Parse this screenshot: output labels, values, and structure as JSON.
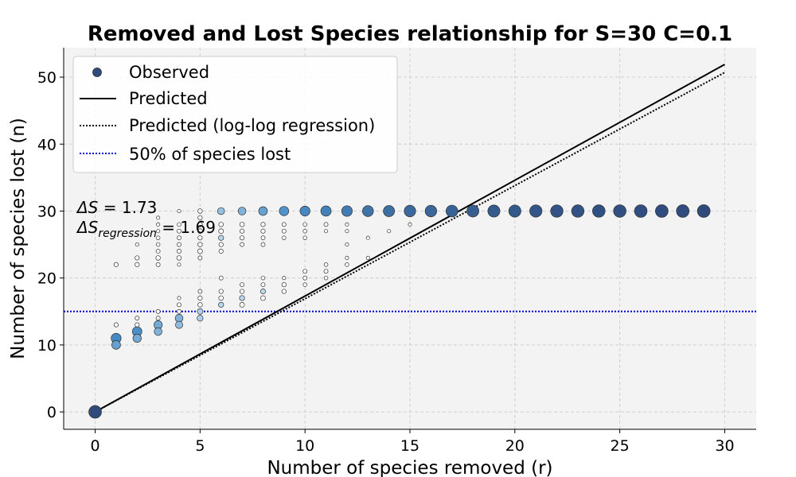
{
  "chart_data": {
    "type": "scatter",
    "title": "Removed and Lost Species relationship for S=30 C=0.1",
    "xlabel": "Number of species removed (r)",
    "ylabel": "Number of species lost (n)",
    "xlim": [
      -1.5,
      31.5
    ],
    "ylim": [
      -2.6,
      54.4
    ],
    "xticks": [
      0,
      5,
      10,
      15,
      20,
      25,
      30
    ],
    "yticks": [
      0,
      10,
      20,
      30,
      40,
      50
    ],
    "grid": true,
    "legend_position": "top-left",
    "legend": {
      "observed": "Observed",
      "predicted": "Predicted",
      "loglog": "Predicted (log-log regression)",
      "half": "50% of species lost"
    },
    "annotations": {
      "delta_s_symbol": "ΔS",
      "delta_s_value": " = 1.73",
      "delta_s_reg_symbol": "ΔS",
      "delta_s_reg_subscript": "regression",
      "delta_s_reg_value": " = 1.69"
    },
    "series": [
      {
        "name": "Predicted",
        "x": [
          0,
          30
        ],
        "y": [
          0,
          51.9
        ],
        "color": "#000000",
        "style": "solid"
      },
      {
        "name": "Predicted (log-log regression)",
        "x": [
          0,
          30
        ],
        "y": [
          0,
          50.7
        ],
        "color": "#000000",
        "style": "dotted"
      },
      {
        "name": "50% of species lost",
        "x": [
          -1.5,
          31.5
        ],
        "y": [
          15,
          15
        ],
        "color": "#0000cc",
        "style": "dotted"
      }
    ],
    "observed_points": [
      [
        0,
        0,
        1.0
      ],
      [
        1,
        22,
        0.05
      ],
      [
        1,
        13,
        0.05
      ],
      [
        1,
        11,
        0.55
      ],
      [
        1,
        10,
        0.4
      ],
      [
        2,
        25,
        0.02
      ],
      [
        2,
        23,
        0.05
      ],
      [
        2,
        22,
        0.05
      ],
      [
        2,
        14,
        0.04
      ],
      [
        2,
        13,
        0.05
      ],
      [
        2,
        12,
        0.5
      ],
      [
        2,
        11,
        0.35
      ],
      [
        3,
        29,
        0.02
      ],
      [
        3,
        28,
        0.02
      ],
      [
        3,
        27,
        0.02
      ],
      [
        3,
        26,
        0.03
      ],
      [
        3,
        25,
        0.03
      ],
      [
        3,
        24,
        0.04
      ],
      [
        3,
        23,
        0.06
      ],
      [
        3,
        22,
        0.04
      ],
      [
        3,
        15,
        0.04
      ],
      [
        3,
        14,
        0.04
      ],
      [
        3,
        13,
        0.35
      ],
      [
        3,
        12,
        0.3
      ],
      [
        4,
        30,
        0.02
      ],
      [
        4,
        28,
        0.03
      ],
      [
        4,
        27,
        0.04
      ],
      [
        4,
        26,
        0.04
      ],
      [
        4,
        25,
        0.04
      ],
      [
        4,
        24,
        0.05
      ],
      [
        4,
        23,
        0.06
      ],
      [
        4,
        22,
        0.02
      ],
      [
        4,
        17,
        0.02
      ],
      [
        4,
        16,
        0.04
      ],
      [
        4,
        15,
        0.04
      ],
      [
        4,
        14,
        0.3
      ],
      [
        4,
        13,
        0.25
      ],
      [
        5,
        30,
        0.06
      ],
      [
        5,
        29,
        0.05
      ],
      [
        5,
        28,
        0.06
      ],
      [
        5,
        27,
        0.07
      ],
      [
        5,
        26,
        0.05
      ],
      [
        5,
        25,
        0.06
      ],
      [
        5,
        24,
        0.07
      ],
      [
        5,
        23,
        0.04
      ],
      [
        5,
        18,
        0.04
      ],
      [
        5,
        17,
        0.05
      ],
      [
        5,
        16,
        0.06
      ],
      [
        5,
        15,
        0.12
      ],
      [
        5,
        14,
        0.14
      ],
      [
        6,
        30,
        0.22
      ],
      [
        6,
        28,
        0.06
      ],
      [
        6,
        27,
        0.07
      ],
      [
        6,
        26,
        0.09
      ],
      [
        6,
        25,
        0.05
      ],
      [
        6,
        24,
        0.05
      ],
      [
        6,
        20,
        0.04
      ],
      [
        6,
        18,
        0.05
      ],
      [
        6,
        17,
        0.06
      ],
      [
        6,
        16,
        0.09
      ],
      [
        7,
        30,
        0.3
      ],
      [
        7,
        28,
        0.06
      ],
      [
        7,
        27,
        0.05
      ],
      [
        7,
        26,
        0.05
      ],
      [
        7,
        25,
        0.04
      ],
      [
        7,
        19,
        0.04
      ],
      [
        7,
        18,
        0.05
      ],
      [
        7,
        17,
        0.09
      ],
      [
        7,
        16,
        0.07
      ],
      [
        8,
        30,
        0.4
      ],
      [
        8,
        28,
        0.05
      ],
      [
        8,
        27,
        0.05
      ],
      [
        8,
        26,
        0.04
      ],
      [
        8,
        25,
        0.04
      ],
      [
        8,
        20,
        0.03
      ],
      [
        8,
        19,
        0.04
      ],
      [
        8,
        18,
        0.08
      ],
      [
        8,
        17,
        0.07
      ],
      [
        9,
        30,
        0.48
      ],
      [
        9,
        28,
        0.04
      ],
      [
        9,
        27,
        0.04
      ],
      [
        9,
        26,
        0.03
      ],
      [
        9,
        20,
        0.02
      ],
      [
        9,
        19,
        0.05
      ],
      [
        9,
        18,
        0.05
      ],
      [
        10,
        30,
        0.55
      ],
      [
        10,
        28,
        0.03
      ],
      [
        10,
        27,
        0.03
      ],
      [
        10,
        26,
        0.03
      ],
      [
        10,
        21,
        0.04
      ],
      [
        10,
        20,
        0.04
      ],
      [
        10,
        19,
        0.03
      ],
      [
        11,
        30,
        0.6
      ],
      [
        11,
        28,
        0.04
      ],
      [
        11,
        27,
        0.02
      ],
      [
        11,
        22,
        0.03
      ],
      [
        11,
        21,
        0.04
      ],
      [
        11,
        20,
        0.03
      ],
      [
        12,
        30,
        0.65
      ],
      [
        12,
        28,
        0.02
      ],
      [
        12,
        27,
        0.02
      ],
      [
        12,
        25,
        0.02
      ],
      [
        12,
        23,
        0.02
      ],
      [
        12,
        22,
        0.03
      ],
      [
        13,
        30,
        0.7
      ],
      [
        13,
        26,
        0.02
      ],
      [
        13,
        23,
        0.02
      ],
      [
        14,
        30,
        0.74
      ],
      [
        14,
        27,
        0.02
      ],
      [
        15,
        30,
        0.78
      ],
      [
        15,
        28,
        0.02
      ],
      [
        16,
        30,
        0.8
      ],
      [
        17,
        30,
        0.83
      ],
      [
        18,
        30,
        0.86
      ],
      [
        19,
        30,
        0.88
      ],
      [
        20,
        30,
        0.9
      ],
      [
        21,
        30,
        0.92
      ],
      [
        22,
        30,
        0.94
      ],
      [
        23,
        30,
        0.95
      ],
      [
        24,
        30,
        0.96
      ],
      [
        25,
        30,
        0.97
      ],
      [
        26,
        30,
        0.98
      ],
      [
        27,
        30,
        0.99
      ],
      [
        28,
        30,
        0.99
      ],
      [
        29,
        30,
        1.0
      ]
    ],
    "colors": {
      "background": "#f2f2f2",
      "grid": "#d0d0d0",
      "scale_low": "#d4e8f5",
      "scale_mid": "#4a8fc8",
      "scale_high": "#2f4b7c",
      "predicted": "#000000",
      "half_line": "#0000cc"
    }
  }
}
